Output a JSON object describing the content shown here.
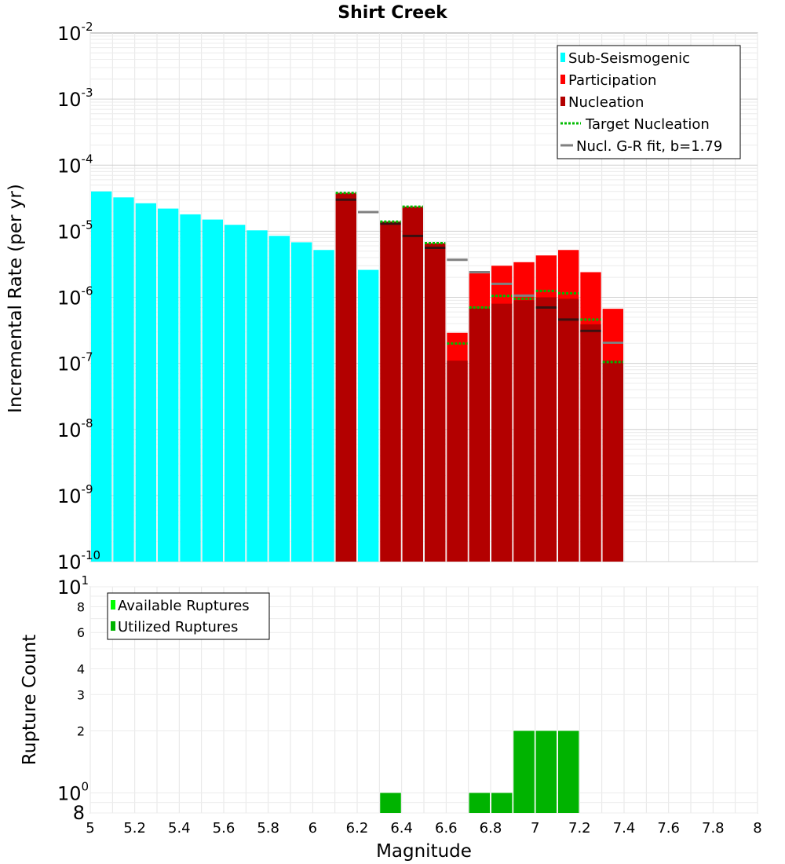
{
  "chart_data": [
    {
      "type": "bar",
      "title": "Shirt Creek",
      "xlabel": "",
      "ylabel": "Incremental Rate (per yr)",
      "yscale": "log",
      "ylim": [
        1e-10,
        0.01
      ],
      "xlim": [
        5,
        8
      ],
      "bin_width": 0.1,
      "y_ticks": [
        {
          "base": "10",
          "exp": "-10"
        },
        {
          "base": "10",
          "exp": "-9"
        },
        {
          "base": "10",
          "exp": "-8"
        },
        {
          "base": "10",
          "exp": "-7"
        },
        {
          "base": "10",
          "exp": "-6"
        },
        {
          "base": "10",
          "exp": "-5"
        },
        {
          "base": "10",
          "exp": "-4"
        },
        {
          "base": "10",
          "exp": "-3"
        },
        {
          "base": "10",
          "exp": "-2"
        }
      ],
      "sub_seismogenic": {
        "name": "Sub-Seismogenic",
        "color": "#00ffff",
        "x": [
          5.05,
          5.15,
          5.25,
          5.35,
          5.45,
          5.55,
          5.65,
          5.75,
          5.85,
          5.95,
          6.05,
          6.25
        ],
        "values": [
          4e-05,
          3.25e-05,
          2.65e-05,
          2.2e-05,
          1.8e-05,
          1.5e-05,
          1.25e-05,
          1.03e-05,
          8.5e-06,
          6.8e-06,
          5.2e-06,
          2.6e-06
        ]
      },
      "participation": {
        "name": "Participation",
        "color": "#ff0000",
        "x": [
          6.15,
          6.35,
          6.45,
          6.55,
          6.65,
          6.75,
          6.85,
          6.95,
          7.05,
          7.15,
          7.25,
          7.35
        ],
        "values": [
          3.8e-05,
          1.4e-05,
          2.35e-05,
          6.6e-06,
          2.9e-07,
          2.3e-06,
          3e-06,
          3.4e-06,
          4.3e-06,
          5.2e-06,
          2.4e-06,
          6.7e-07
        ]
      },
      "nucleation": {
        "name": "Nucleation",
        "color": "#b30000",
        "x": [
          6.15,
          6.35,
          6.45,
          6.55,
          6.65,
          6.75,
          6.85,
          6.95,
          7.05,
          7.15,
          7.25,
          7.35
        ],
        "values": [
          3.8e-05,
          1.4e-05,
          2.35e-05,
          6.6e-06,
          1.1e-07,
          6.8e-07,
          8e-07,
          9e-07,
          1e-06,
          9.5e-07,
          3.9e-07,
          1.1e-07
        ]
      },
      "target_nucleation": {
        "name": "Target Nucleation",
        "color": "#00bb00",
        "x": [
          6.15,
          6.35,
          6.45,
          6.55,
          6.65,
          6.75,
          6.85,
          6.95,
          7.05,
          7.15,
          7.25,
          7.35
        ],
        "values": [
          3.8e-05,
          1.4e-05,
          2.35e-05,
          6.6e-06,
          2e-07,
          7e-07,
          1.05e-06,
          9.5e-07,
          1.25e-06,
          1.15e-06,
          4.6e-07,
          1.05e-07
        ]
      },
      "gr_fit": {
        "name": "Nucl. G-R fit, b=1.79",
        "color": "#808080",
        "x": [
          6.15,
          6.25,
          6.35,
          6.45,
          6.55,
          6.65,
          6.75,
          6.85,
          6.95,
          7.05,
          7.15,
          7.25,
          7.35
        ],
        "values": [
          3e-05,
          1.95e-05,
          1.3e-05,
          8.5e-06,
          5.6e-06,
          3.7e-06,
          2.4e-06,
          1.6e-06,
          1.06e-06,
          7e-07,
          4.6e-07,
          3.1e-07,
          2.05e-07
        ]
      },
      "legend": [
        "Sub-Seismogenic",
        "Participation",
        "Nucleation",
        "Target Nucleation",
        "Nucl. G-R fit, b=1.79"
      ],
      "legend_position": "top-right"
    },
    {
      "type": "bar",
      "title": "",
      "xlabel": "Magnitude",
      "ylabel": "Rupture Count",
      "yscale": "log",
      "ylim": [
        0.8,
        10
      ],
      "xlim": [
        5,
        8
      ],
      "x_ticks": [
        "5",
        "5.2",
        "5.4",
        "5.6",
        "5.8",
        "6",
        "6.2",
        "6.4",
        "6.6",
        "6.8",
        "7",
        "7.2",
        "7.4",
        "7.6",
        "7.8",
        "8"
      ],
      "y_major_ticks": [
        {
          "value": 1,
          "base": "10",
          "exp": "0"
        },
        {
          "value": 10,
          "base": "10",
          "exp": "1"
        }
      ],
      "y_minor_ticks": [
        {
          "value": 0.8,
          "label": "8"
        },
        {
          "value": 2,
          "label": "2"
        },
        {
          "value": 3,
          "label": "3"
        },
        {
          "value": 4,
          "label": "4"
        },
        {
          "value": 6,
          "label": "6"
        },
        {
          "value": 8,
          "label": "8"
        }
      ],
      "available": {
        "name": "Available Ruptures",
        "color": "#00ff00",
        "x": [
          6.35,
          6.75,
          6.85,
          6.95,
          7.05,
          7.15
        ],
        "values": [
          1,
          1,
          1,
          2,
          2,
          2
        ]
      },
      "utilized": {
        "name": "Utilized Ruptures",
        "color": "#00b300",
        "x": [
          6.35,
          6.75,
          6.85,
          6.95,
          7.05,
          7.15
        ],
        "values": [
          1,
          1,
          1,
          2,
          2,
          2
        ]
      },
      "legend": [
        "Available Ruptures",
        "Utilized Ruptures"
      ],
      "legend_position": "top-left"
    }
  ]
}
